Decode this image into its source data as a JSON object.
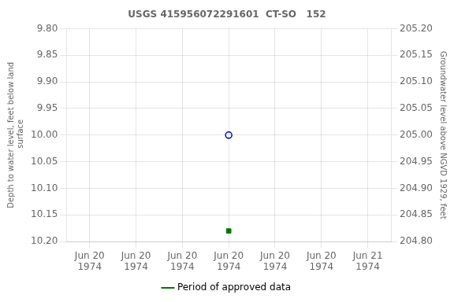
{
  "chart_data": {
    "type": "scatter",
    "title": "USGS 415956072291601  CT-SO   152",
    "y_label": "Depth to water level, feet below land\n surface",
    "y2_label": "Groundwater level above NGVD 1929, feet",
    "categories": [
      "Jun 20\n1974",
      "Jun 20\n1974",
      "Jun 20\n1974",
      "Jun 20\n1974",
      "Jun 20\n1974",
      "Jun 20\n1974",
      "Jun 21\n1974"
    ],
    "series": [
      {
        "color": "#0000cc",
        "marker": "circle_open",
        "values": [
          null,
          null,
          null,
          10.0,
          null,
          null,
          null
        ]
      },
      {
        "name": "Period of approved data",
        "color": "#007700",
        "marker": "square",
        "values": [
          null,
          null,
          null,
          10.18,
          null,
          null,
          null
        ]
      }
    ],
    "ylim": [
      10.2,
      9.8
    ],
    "yticks": [
      {
        "value": 9.8,
        "label": "9.80"
      },
      9.85,
      {
        "value": 9.9,
        "label": "9.90"
      },
      9.95,
      {
        "value": 10,
        "label": "10.00"
      },
      10.05,
      {
        "value": 10.1,
        "label": "10.10"
      },
      10.15,
      {
        "value": 10.2,
        "label": "10.20"
      }
    ],
    "y2lim": [
      204.8,
      205.2
    ],
    "y2ticks": [
      {
        "value": 205.2,
        "label": "205.20"
      },
      205.15,
      {
        "value": 205.1,
        "label": "205.10"
      },
      205.05,
      {
        "value": 205,
        "label": "205.00"
      },
      204.95,
      {
        "value": 204.9,
        "label": "204.90"
      },
      204.85,
      {
        "value": 204.8,
        "label": "204.80"
      }
    ],
    "grid": true,
    "legend": "bottom"
  }
}
